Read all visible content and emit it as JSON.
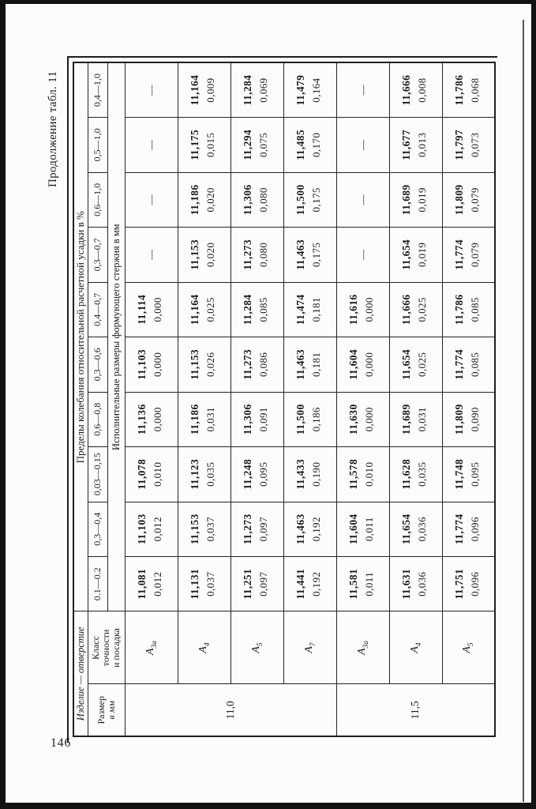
{
  "page": {
    "caption": "Продолжение табл. 11",
    "page_number": "146"
  },
  "table": {
    "header": {
      "product_label": "Изделие — отверстие",
      "size_label_lines": [
        "Размер",
        "в мм"
      ],
      "class_label_lines": [
        "Класс",
        "точности",
        "и посадка"
      ],
      "limits_label": "Пределы колебания относительной расчетной усадки в %",
      "exec_label": "Исполнительные размеры формующего стержня в мм",
      "ranges": [
        "0.1—0.2",
        "0,3—0,4",
        "0,03—0,15",
        "0,6—0,8",
        "0,3—0,6",
        "0,4—0,7",
        "0,3—0,7",
        "0,6—1,0",
        "0,5—1,0",
        "0,4—1,0"
      ]
    },
    "rows": [
      {
        "size": "11,0",
        "size_rowspan": 4,
        "cls": {
          "base": "А",
          "sub": "3а"
        },
        "cells": [
          [
            "11,081",
            "0,012"
          ],
          [
            "11,103",
            "0,012"
          ],
          [
            "11,078",
            "0,010"
          ],
          [
            "11,136",
            "0,000"
          ],
          [
            "11,103",
            "0,000"
          ],
          [
            "11,114",
            "0,000"
          ],
          "—",
          "—",
          "—",
          "—"
        ]
      },
      {
        "cls": {
          "base": "А",
          "sub": "4"
        },
        "cells": [
          [
            "11,131",
            "0,037"
          ],
          [
            "11,153",
            "0,037"
          ],
          [
            "11,123",
            "0,035"
          ],
          [
            "11,186",
            "0,031"
          ],
          [
            "11,153",
            "0,026"
          ],
          [
            "11,164",
            "0,025"
          ],
          [
            "11,153",
            "0,020"
          ],
          [
            "11,186",
            "0,020"
          ],
          [
            "11,175",
            "0,015"
          ],
          [
            "11,164",
            "0,009"
          ]
        ]
      },
      {
        "cls": {
          "base": "А",
          "sub": "5"
        },
        "cells": [
          [
            "11,251",
            "0,097"
          ],
          [
            "11,273",
            "0,097"
          ],
          [
            "11,248",
            "0,095"
          ],
          [
            "11,306",
            "0,091"
          ],
          [
            "11,273",
            "0,086"
          ],
          [
            "11,284",
            "0,085"
          ],
          [
            "11,273",
            "0,080"
          ],
          [
            "11,306",
            "0,080"
          ],
          [
            "11,294",
            "0,075"
          ],
          [
            "11,284",
            "0,069"
          ]
        ]
      },
      {
        "cls": {
          "base": "А",
          "sub": "7"
        },
        "cells": [
          [
            "11,441",
            "0,192"
          ],
          [
            "11,463",
            "0,192"
          ],
          [
            "11,433",
            "0,190"
          ],
          [
            "11,500",
            "0,186"
          ],
          [
            "11,463",
            "0,181"
          ],
          [
            "11,474",
            "0,181"
          ],
          [
            "11,463",
            "0,175"
          ],
          [
            "11,500",
            "0,175"
          ],
          [
            "11,485",
            "0,170"
          ],
          [
            "11,479",
            "0,164"
          ]
        ]
      },
      {
        "size": "11,5",
        "size_rowspan": 3,
        "cls": {
          "base": "А",
          "sub": "3а"
        },
        "cells": [
          [
            "11,581",
            "0,011"
          ],
          [
            "11,604",
            "0,011"
          ],
          [
            "11,578",
            "0,010"
          ],
          [
            "11,630",
            "0,000"
          ],
          [
            "11,604",
            "0,000"
          ],
          [
            "11,616",
            "0,000"
          ],
          "—",
          "—",
          "—",
          "—"
        ]
      },
      {
        "cls": {
          "base": "А",
          "sub": "4"
        },
        "cells": [
          [
            "11,631",
            "0,036"
          ],
          [
            "11,654",
            "0,036"
          ],
          [
            "11,628",
            "0,035"
          ],
          [
            "11,689",
            "0,031"
          ],
          [
            "11,654",
            "0,025"
          ],
          [
            "11,666",
            "0,025"
          ],
          [
            "11,654",
            "0,019"
          ],
          [
            "11,689",
            "0,019"
          ],
          [
            "11,677",
            "0,013"
          ],
          [
            "11,666",
            "0,008"
          ]
        ]
      },
      {
        "cls": {
          "base": "А",
          "sub": "5"
        },
        "cells": [
          [
            "11,751",
            "0,096"
          ],
          [
            "11,774",
            "0,096"
          ],
          [
            "11,748",
            "0,095"
          ],
          [
            "11,809",
            "0,090"
          ],
          [
            "11,774",
            "0,085"
          ],
          [
            "11,786",
            "0,085"
          ],
          [
            "11,774",
            "0,079"
          ],
          [
            "11,809",
            "0,079"
          ],
          [
            "11,797",
            "0,073"
          ],
          [
            "11,786",
            "0,068"
          ]
        ]
      }
    ]
  }
}
